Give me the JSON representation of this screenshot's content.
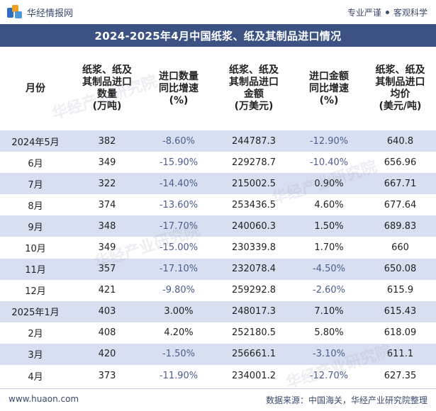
{
  "header": {
    "brand_name": "华经情报网",
    "slogan_left": "专业严谨",
    "slogan_right": "客观科学"
  },
  "title": "2024-2025年4月中国纸浆、纸及其制品进口情况",
  "columns": [
    "月份",
    "纸浆、纸及其制品进口数量(万吨)",
    "进口数量同比增速(%)",
    "纸浆、纸及其制品进口金额(万美元)",
    "进口金额同比增速(%)",
    "纸浆、纸及其制品进口均价(美元/吨)"
  ],
  "column_lines": [
    [
      "月份"
    ],
    [
      "纸浆、纸及",
      "其制品进口",
      "数量",
      "(万吨)"
    ],
    [
      "进口数量",
      "同比增速",
      "(%)"
    ],
    [
      "纸浆、纸及",
      "其制品进口",
      "金额",
      "(万美元)"
    ],
    [
      "进口金额",
      "同比增速",
      "(%)"
    ],
    [
      "纸浆、纸及",
      "其制品进口",
      "均价",
      "(美元/吨)"
    ]
  ],
  "rows": [
    {
      "month": "2024年5月",
      "qty": "382",
      "qty_yoy": "-8.60%",
      "amount": "244787.3",
      "amount_yoy": "-12.90%",
      "price": "640.8"
    },
    {
      "month": "6月",
      "qty": "349",
      "qty_yoy": "-15.90%",
      "amount": "229278.7",
      "amount_yoy": "-10.40%",
      "price": "656.96"
    },
    {
      "month": "7月",
      "qty": "322",
      "qty_yoy": "-14.40%",
      "amount": "215002.5",
      "amount_yoy": "0.90%",
      "price": "667.71"
    },
    {
      "month": "8月",
      "qty": "374",
      "qty_yoy": "-13.60%",
      "amount": "253436.5",
      "amount_yoy": "4.60%",
      "price": "677.64"
    },
    {
      "month": "9月",
      "qty": "348",
      "qty_yoy": "-17.70%",
      "amount": "240060.3",
      "amount_yoy": "1.50%",
      "price": "689.83"
    },
    {
      "month": "10月",
      "qty": "349",
      "qty_yoy": "-15.00%",
      "amount": "230339.8",
      "amount_yoy": "1.70%",
      "price": "660"
    },
    {
      "month": "11月",
      "qty": "357",
      "qty_yoy": "-17.10%",
      "amount": "232078.4",
      "amount_yoy": "-4.50%",
      "price": "650.08"
    },
    {
      "month": "12月",
      "qty": "421",
      "qty_yoy": "-9.80%",
      "amount": "259292.8",
      "amount_yoy": "-2.60%",
      "price": "615.9"
    },
    {
      "month": "2025年1月",
      "qty": "403",
      "qty_yoy": "3.00%",
      "amount": "248017.3",
      "amount_yoy": "7.10%",
      "price": "615.43"
    },
    {
      "month": "2月",
      "qty": "408",
      "qty_yoy": "4.20%",
      "amount": "252180.5",
      "amount_yoy": "5.80%",
      "price": "618.09"
    },
    {
      "month": "3月",
      "qty": "420",
      "qty_yoy": "-1.50%",
      "amount": "256661.1",
      "amount_yoy": "-3.10%",
      "price": "611.1"
    },
    {
      "month": "4月",
      "qty": "373",
      "qty_yoy": "-11.90%",
      "amount": "234001.2",
      "amount_yoy": "-12.70%",
      "price": "627.35"
    }
  ],
  "footer": {
    "website": "www.huaon.com",
    "source": "数据来源：中国海关，华经产业研究院整理"
  },
  "watermark": "华经产业研究院",
  "colors": {
    "title_bg": "#3b5283",
    "stripe": "#d8dff0",
    "negative_text": "#4a5f8e",
    "brand_text": "#3a4a6b"
  }
}
